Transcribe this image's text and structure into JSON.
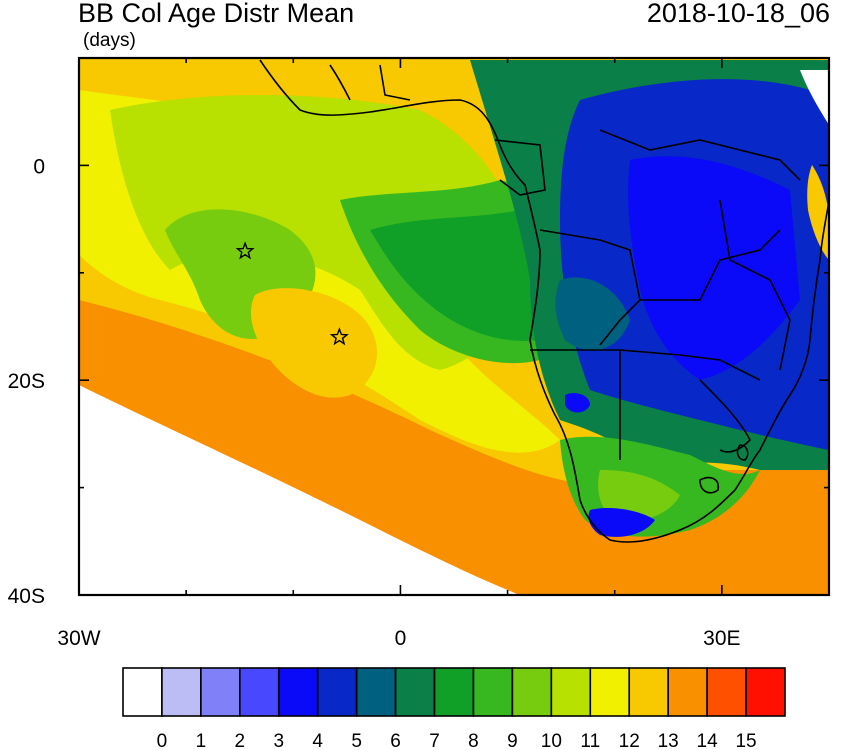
{
  "header": {
    "title": "BB Col Age Distr Mean",
    "units": "(days)",
    "date": "2018-10-18_06"
  },
  "map": {
    "lon_range": [
      -30,
      40
    ],
    "lat_range": [
      -40,
      10
    ],
    "x_ticks": [
      {
        "lon": -30,
        "label": "30W"
      },
      {
        "lon": 0,
        "label": "0"
      },
      {
        "lon": 30,
        "label": "30E"
      }
    ],
    "y_ticks": [
      {
        "lat": 0,
        "label": "0"
      },
      {
        "lat": -20,
        "label": "20S"
      },
      {
        "lat": -40,
        "label": "40S"
      }
    ],
    "star_markers": [
      {
        "lon": -14.5,
        "lat": -8
      },
      {
        "lon": -5.7,
        "lat": -16
      }
    ]
  },
  "colorbar": {
    "colors": [
      "#ffffff",
      "#bdbdf5",
      "#8080f8",
      "#4848ff",
      "#0a0af8",
      "#0828c8",
      "#006080",
      "#0a8048",
      "#10a028",
      "#38b820",
      "#78cc10",
      "#b8e000",
      "#f0f000",
      "#f8c800",
      "#f89000",
      "#ff5000",
      "#ff1000"
    ],
    "labels": [
      "0",
      "1",
      "2",
      "3",
      "4",
      "5",
      "6",
      "7",
      "8",
      "9",
      "10",
      "11",
      "12",
      "13",
      "14",
      "15"
    ]
  }
}
